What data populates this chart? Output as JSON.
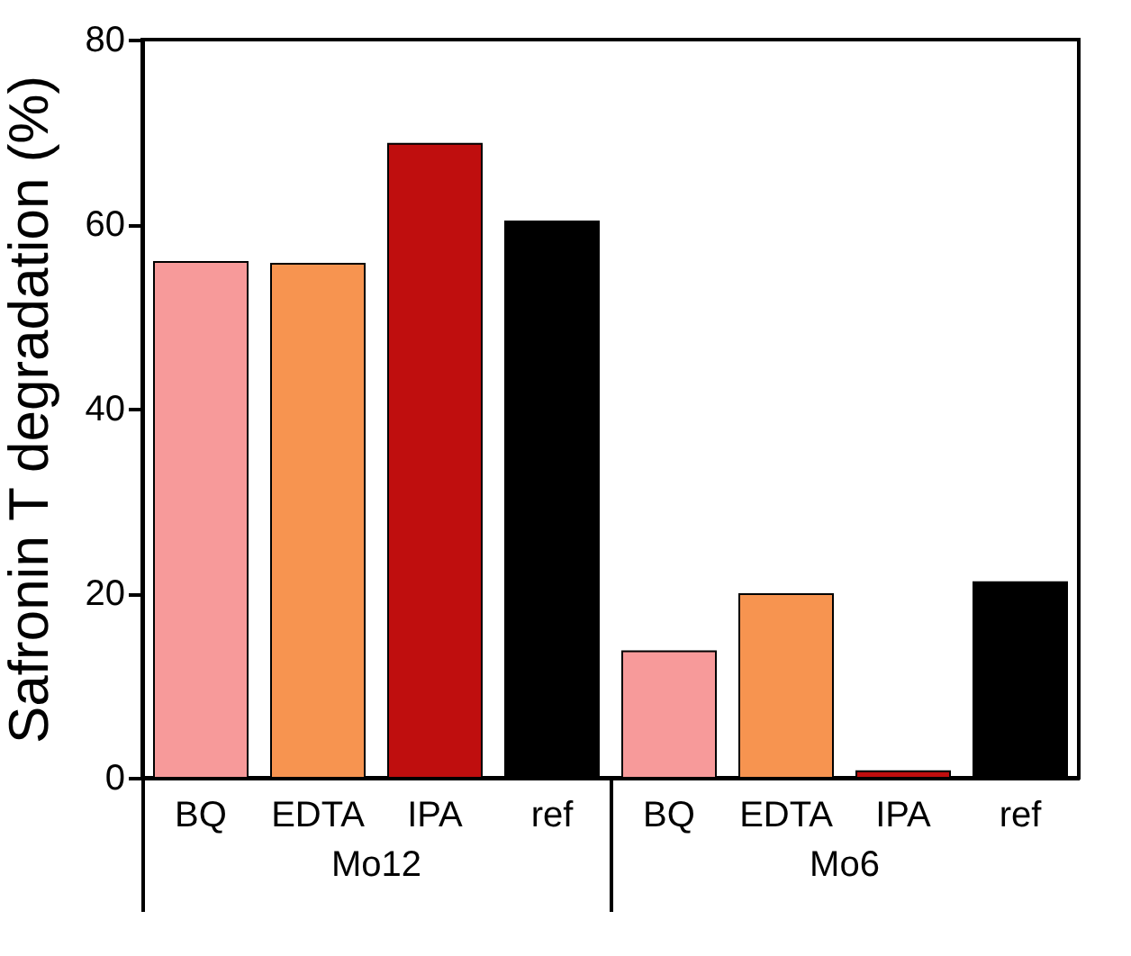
{
  "chart_data": {
    "type": "bar",
    "ylabel": "Safronin T degradation (%)",
    "categories": [
      "Mo12",
      "Mo6"
    ],
    "series": [
      {
        "name": "BQ",
        "color": "#f79a9a",
        "values": [
          55.9,
          13.7
        ]
      },
      {
        "name": "EDTA",
        "color": "#f79450",
        "values": [
          55.7,
          19.9
        ]
      },
      {
        "name": "IPA",
        "color": "#bf0e0e",
        "values": [
          68.7,
          0.7
        ]
      },
      {
        "name": "ref",
        "color": "#000000",
        "values": [
          60.3,
          21.2
        ]
      }
    ],
    "ylim": [
      0,
      80
    ],
    "yticks": [
      0,
      20,
      40,
      60,
      80
    ],
    "grid": false,
    "legend": false
  }
}
